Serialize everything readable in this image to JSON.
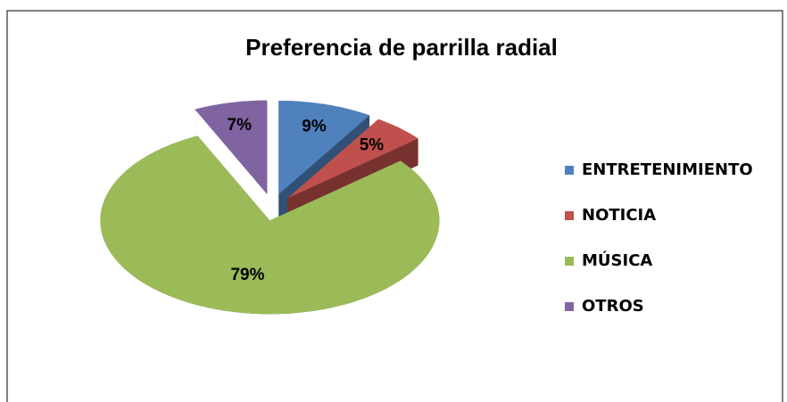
{
  "chart_data": {
    "type": "pie",
    "title": "Preferencia de parrilla radial",
    "categories": [
      "ENTRETENIMIENTO",
      "NOTICIA",
      "MÚSICA",
      "OTROS"
    ],
    "values": [
      9,
      5,
      79,
      7
    ],
    "value_labels": [
      "9%",
      "5%",
      "79%",
      "7%"
    ],
    "colors": [
      "#4f81bd",
      "#c0504d",
      "#9bbb59",
      "#8064a2"
    ],
    "legend": "right"
  }
}
